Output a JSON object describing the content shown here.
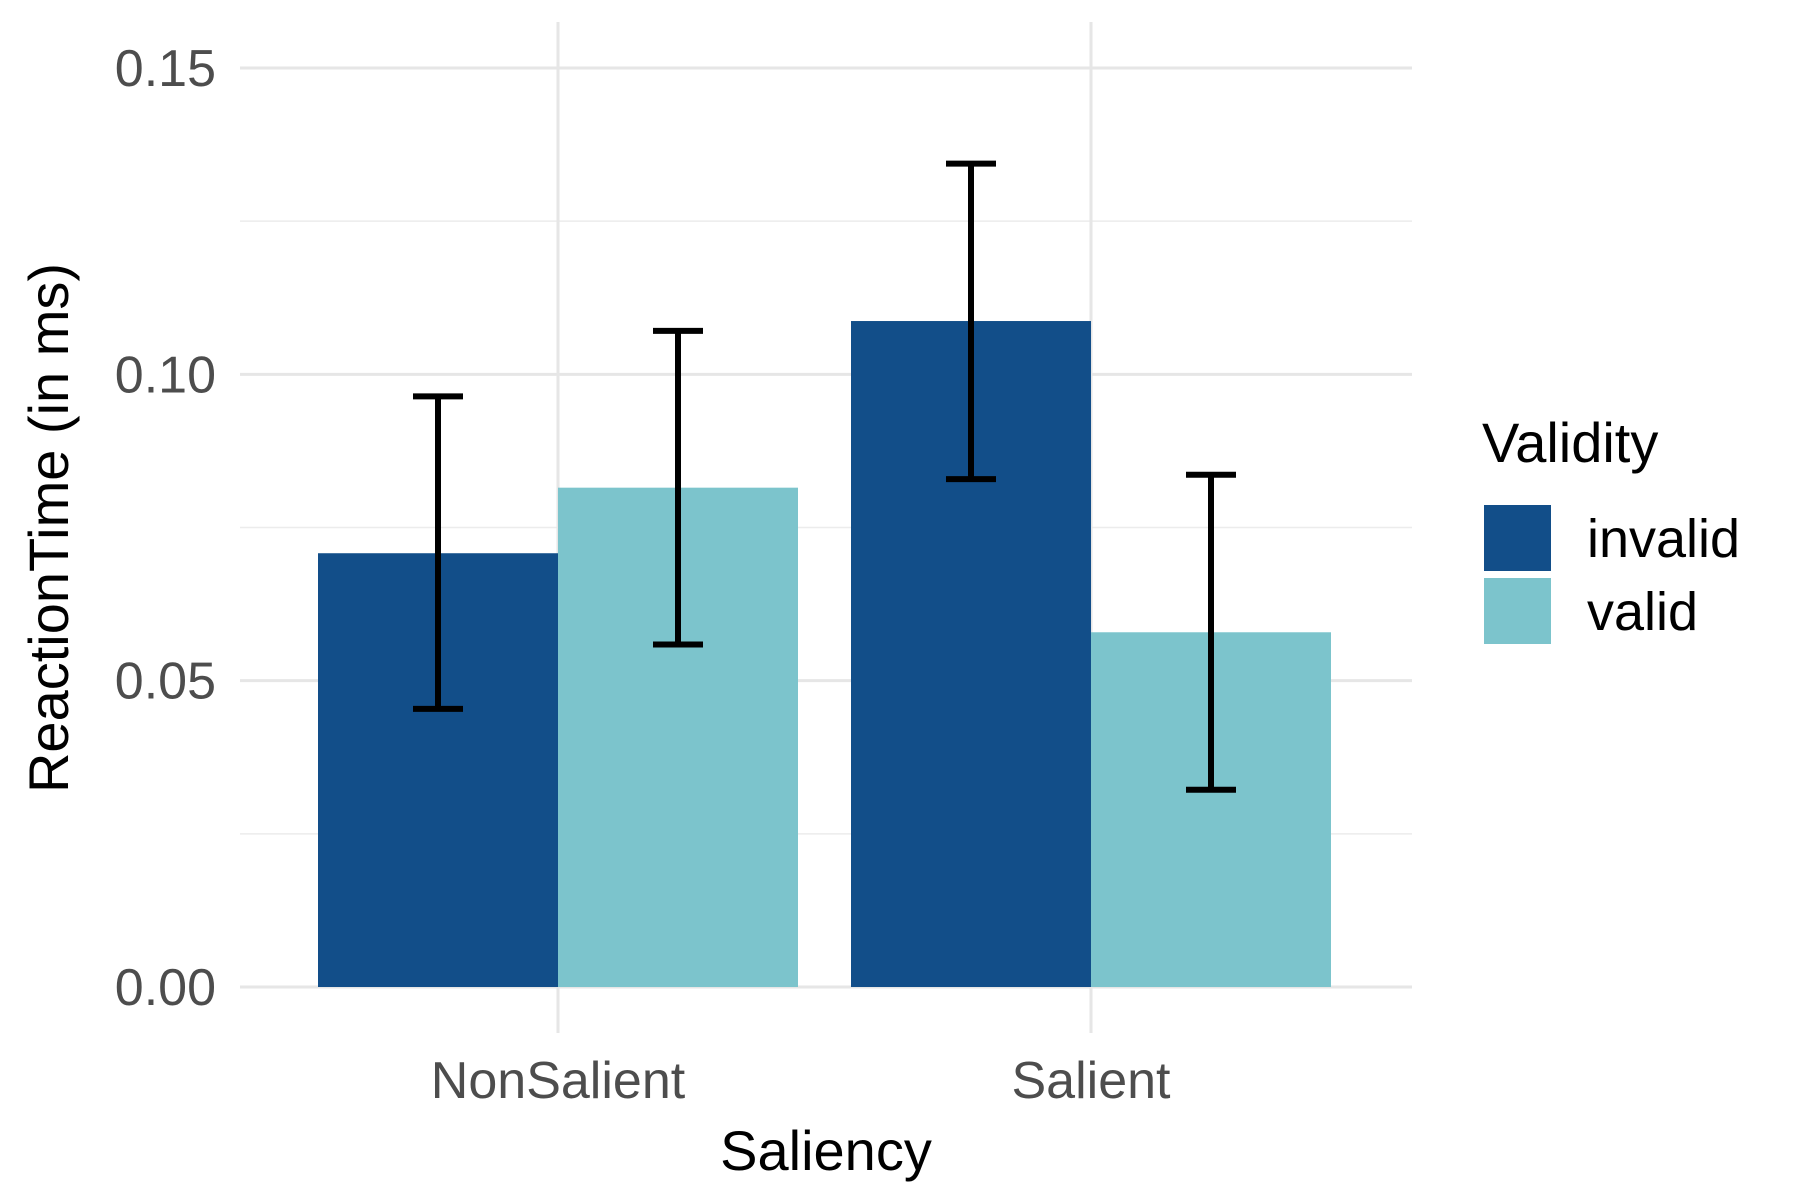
{
  "chart_data": {
    "type": "bar",
    "title": "",
    "xlabel": "Saliency",
    "ylabel": "ReactionTime (in ms)",
    "categories": [
      "NonSalient",
      "Salient"
    ],
    "ylim": [
      0,
      0.157
    ],
    "yticks": [
      0.0,
      0.05,
      0.1,
      0.15
    ],
    "ytick_labels": [
      "0.00",
      "0.05",
      "0.10",
      "0.15"
    ],
    "grid": true,
    "legend": {
      "title": "Validity",
      "position": "right"
    },
    "series": [
      {
        "name": "invalid",
        "color": "#124e89",
        "values": [
          0.0708,
          0.1087
        ],
        "error_low": [
          0.0454,
          0.0829
        ],
        "error_high": [
          0.0964,
          0.1344
        ]
      },
      {
        "name": "valid",
        "color": "#7cc4cc",
        "values": [
          0.0815,
          0.0579
        ],
        "error_low": [
          0.0559,
          0.0322
        ],
        "error_high": [
          0.1071,
          0.0836
        ]
      }
    ]
  }
}
